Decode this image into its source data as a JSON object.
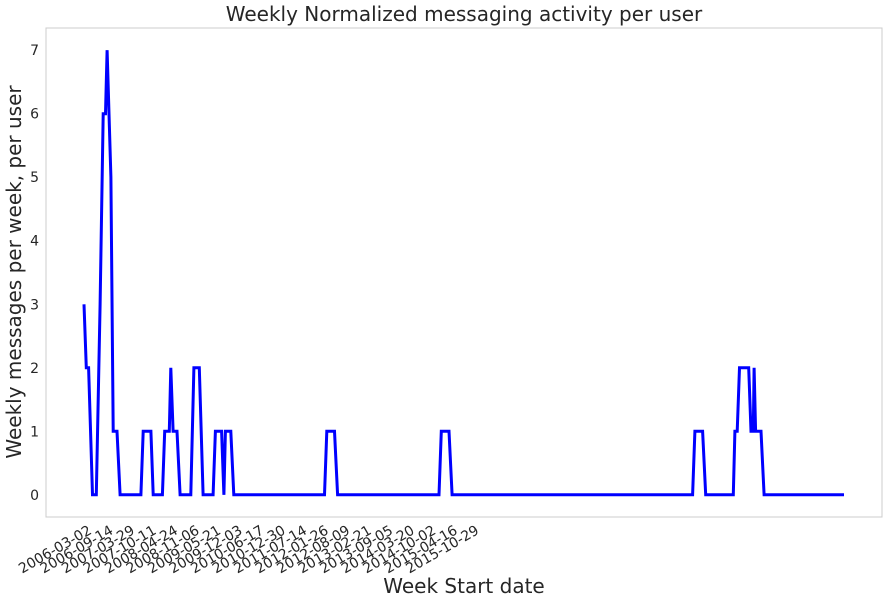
{
  "chart_data": {
    "type": "line",
    "title": "Weekly Normalized messaging activity per user",
    "xlabel": "Week Start date",
    "ylabel": "Weekly messages per week, per user",
    "ylim": [
      -0.35,
      7.35
    ],
    "y_ticks": [
      0,
      1,
      2,
      3,
      4,
      5,
      6,
      7
    ],
    "x_ticks": [
      "2006-03-02",
      "2006-09-14",
      "2007-03-29",
      "2007-10-11",
      "2008-04-24",
      "2008-11-06",
      "2009-05-21",
      "2009-12-03",
      "2010-06-17",
      "2010-12-30",
      "2011-07-14",
      "2012-01-26",
      "2012-08-09",
      "2013-02-21",
      "2013-09-05",
      "2014-03-20",
      "2014-10-02",
      "2015-04-16",
      "2015-10-29"
    ],
    "grid": false,
    "legend": "none",
    "colors": {
      "line": "#0000ff",
      "frame": "#cccccc",
      "text": "#262626"
    },
    "series": [
      {
        "points": [
          [
            "2006-01-19",
            3
          ],
          [
            "2006-02-09",
            2
          ],
          [
            "2006-03-02",
            2
          ],
          [
            "2006-04-06",
            0
          ],
          [
            "2006-05-11",
            0
          ],
          [
            "2006-06-15",
            3
          ],
          [
            "2006-07-13",
            6
          ],
          [
            "2006-08-03",
            6
          ],
          [
            "2006-08-17",
            7
          ],
          [
            "2006-09-21",
            5
          ],
          [
            "2006-10-12",
            1
          ],
          [
            "2006-11-16",
            1
          ],
          [
            "2006-12-14",
            0
          ],
          [
            "2007-06-21",
            0
          ],
          [
            "2007-07-12",
            1
          ],
          [
            "2007-09-20",
            1
          ],
          [
            "2007-10-11",
            0
          ],
          [
            "2008-01-03",
            0
          ],
          [
            "2008-01-24",
            1
          ],
          [
            "2008-03-06",
            1
          ],
          [
            "2008-03-20",
            2
          ],
          [
            "2008-04-10",
            1
          ],
          [
            "2008-05-15",
            1
          ],
          [
            "2008-06-12",
            0
          ],
          [
            "2008-09-18",
            0
          ],
          [
            "2008-10-16",
            2
          ],
          [
            "2008-12-04",
            2
          ],
          [
            "2009-01-08",
            0
          ],
          [
            "2009-04-09",
            0
          ],
          [
            "2009-04-30",
            1
          ],
          [
            "2009-06-25",
            1
          ],
          [
            "2009-07-16",
            0
          ],
          [
            "2009-07-30",
            1
          ],
          [
            "2009-09-17",
            1
          ],
          [
            "2009-10-15",
            0
          ],
          [
            "2012-01-19",
            0
          ],
          [
            "2012-02-09",
            1
          ],
          [
            "2012-04-19",
            1
          ],
          [
            "2012-05-17",
            0
          ],
          [
            "2014-11-27",
            0
          ],
          [
            "2014-12-18",
            1
          ],
          [
            "2015-02-26",
            1
          ],
          [
            "2015-03-26",
            0
          ],
          [
            "2021-03-25",
            0
          ],
          [
            "2021-04-15",
            1
          ],
          [
            "2021-06-24",
            1
          ],
          [
            "2021-07-22",
            0
          ],
          [
            "2022-03-31",
            0
          ],
          [
            "2022-04-14",
            1
          ],
          [
            "2022-05-05",
            1
          ],
          [
            "2022-05-26",
            2
          ],
          [
            "2022-08-18",
            2
          ],
          [
            "2022-09-08",
            1
          ],
          [
            "2022-09-29",
            1
          ],
          [
            "2022-10-06",
            2
          ],
          [
            "2022-10-20",
            1
          ],
          [
            "2022-12-08",
            1
          ],
          [
            "2023-01-05",
            0
          ],
          [
            "2025-01-02",
            0
          ]
        ]
      }
    ]
  }
}
